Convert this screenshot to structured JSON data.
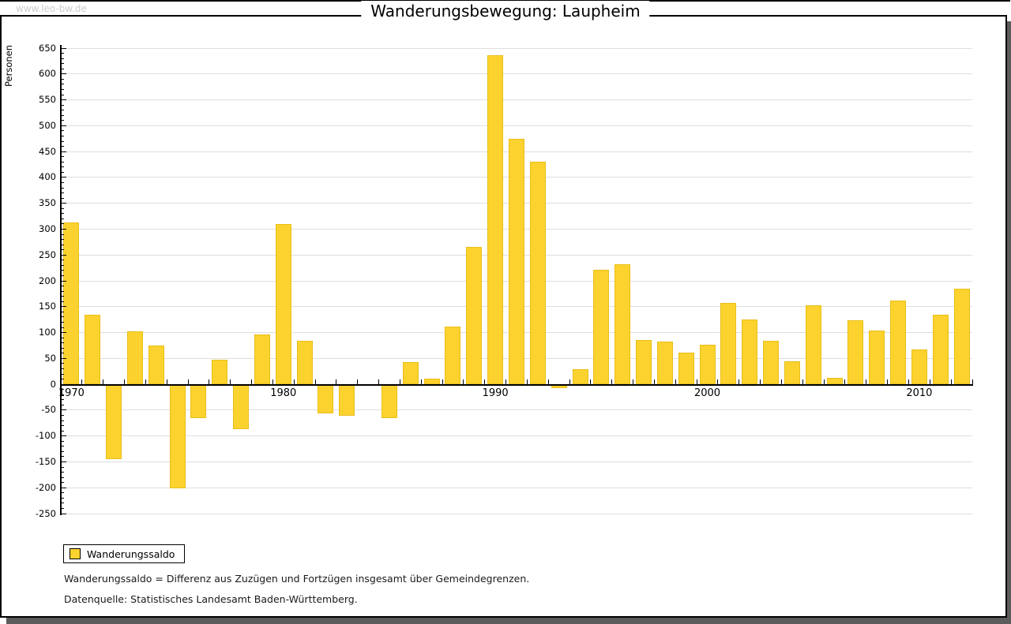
{
  "watermark": "www.leo-bw.de",
  "title": "Wanderungsbewegung: Laupheim",
  "y_axis": {
    "label": "Personen",
    "min": -250,
    "max": 650,
    "major_step": 50,
    "minor_step": 10
  },
  "x_axis": {
    "labeled_years": [
      1970,
      1980,
      1990,
      2000,
      2010
    ]
  },
  "legend": {
    "label": "Wanderungssaldo"
  },
  "footnotes": [
    "Wanderungssaldo = Differenz aus Zuzügen und Fortzügen insgesamt über Gemeindegrenzen.",
    "Datenquelle: Statistisches Landesamt Baden-Württemberg."
  ],
  "colors": {
    "bar_fill": "#fcd32e",
    "bar_border": "#eabd17",
    "grid": "#dedede",
    "axis": "#000000",
    "watermark": "#cccccc",
    "shadow": "#5c5c5c",
    "title_text": "#000000"
  },
  "chart_data": {
    "type": "bar",
    "title": "Wanderungsbewegung: Laupheim",
    "xlabel": "",
    "ylabel": "Personen",
    "ylim": [
      -250,
      650
    ],
    "grid": "horizontal",
    "legend_position": "bottom-left",
    "series_name": "Wanderungssaldo",
    "years": [
      1970,
      1971,
      1972,
      1973,
      1974,
      1975,
      1976,
      1977,
      1978,
      1979,
      1980,
      1981,
      1982,
      1983,
      1984,
      1985,
      1986,
      1987,
      1988,
      1989,
      1990,
      1991,
      1992,
      1993,
      1994,
      1995,
      1996,
      1997,
      1998,
      1999,
      2000,
      2001,
      2002,
      2003,
      2004,
      2005,
      2006,
      2007,
      2008,
      2009,
      2010,
      2011,
      2012
    ],
    "values": [
      313,
      135,
      -144,
      103,
      75,
      -201,
      -65,
      48,
      -87,
      96,
      310,
      84,
      -56,
      -61,
      0,
      -66,
      43,
      11,
      112,
      265,
      637,
      475,
      430,
      -8,
      29,
      222,
      232,
      85,
      82,
      61,
      77,
      157,
      125,
      84,
      45,
      152,
      12,
      124,
      104,
      162,
      68,
      135,
      184
    ]
  }
}
